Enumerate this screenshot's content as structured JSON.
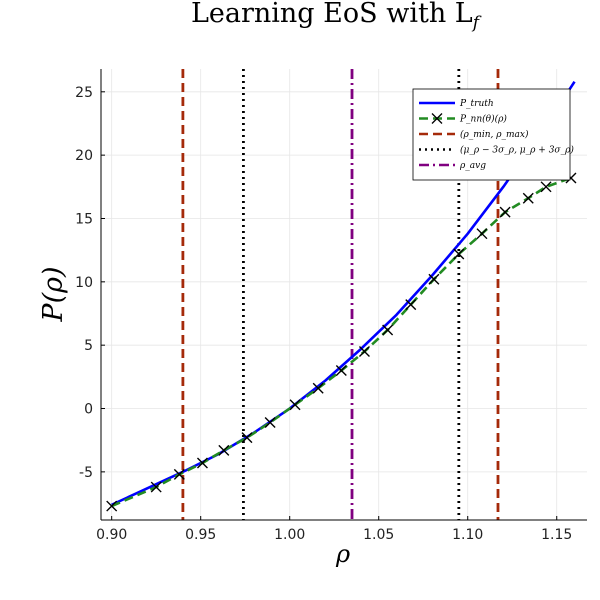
{
  "chart_data": {
    "type": "line",
    "title": "Learning EoS with L",
    "title_subscript": "f",
    "xlabel": "ρ",
    "ylabel": "P(ρ)",
    "xlim": [
      0.894,
      1.167
    ],
    "ylim": [
      -8.8,
      26.8
    ],
    "xticks": [
      0.9,
      0.95,
      1.0,
      1.05,
      1.1,
      1.15
    ],
    "xtick_labels": [
      "0.90",
      "0.95",
      "1.00",
      "1.05",
      "1.10",
      "1.15"
    ],
    "yticks": [
      -5,
      0,
      5,
      10,
      15,
      20,
      25
    ],
    "ytick_labels": [
      "-5",
      "0",
      "5",
      "10",
      "15",
      "20",
      "25"
    ],
    "grid": true,
    "legend_position": "top-right",
    "series": [
      {
        "name": "P_truth",
        "color": "#0000ff",
        "style": "solid",
        "x": [
          0.9,
          0.92,
          0.94,
          0.96,
          0.98,
          1.0,
          1.02,
          1.04,
          1.06,
          1.08,
          1.1,
          1.12,
          1.14,
          1.16
        ],
        "y": [
          -7.6,
          -6.3,
          -5.0,
          -3.6,
          -1.9,
          0.0,
          2.2,
          4.7,
          7.4,
          10.5,
          13.8,
          17.5,
          21.5,
          25.8
        ]
      },
      {
        "name": "P_nn(θ)(ρ)",
        "color": "#228b22",
        "style": "dashed",
        "marker": "x",
        "x": [
          0.9,
          0.925,
          0.938,
          0.951,
          0.963,
          0.976,
          0.989,
          1.003,
          1.016,
          1.029,
          1.042,
          1.055,
          1.068,
          1.081,
          1.095,
          1.108,
          1.121,
          1.134,
          1.144,
          1.158
        ],
        "y": [
          -7.7,
          -6.2,
          -5.2,
          -4.3,
          -3.3,
          -2.3,
          -1.1,
          0.3,
          1.6,
          3.0,
          4.5,
          6.2,
          8.2,
          10.2,
          12.2,
          13.8,
          15.5,
          16.6,
          17.5,
          18.2
        ]
      }
    ],
    "vlines": [
      {
        "name": "(ρ_min, ρ_max)",
        "color": "#a52a0a",
        "style": "dashed",
        "x": [
          0.94,
          1.117
        ]
      },
      {
        "name": "(μ_ρ − 3σ_ρ, μ_ρ + 3σ_ρ)",
        "color": "#000000",
        "style": "dotted",
        "x": [
          0.974,
          1.095
        ]
      },
      {
        "name": "ρ_avg",
        "color": "#800080",
        "style": "dashdot",
        "x": [
          1.035
        ]
      }
    ]
  }
}
